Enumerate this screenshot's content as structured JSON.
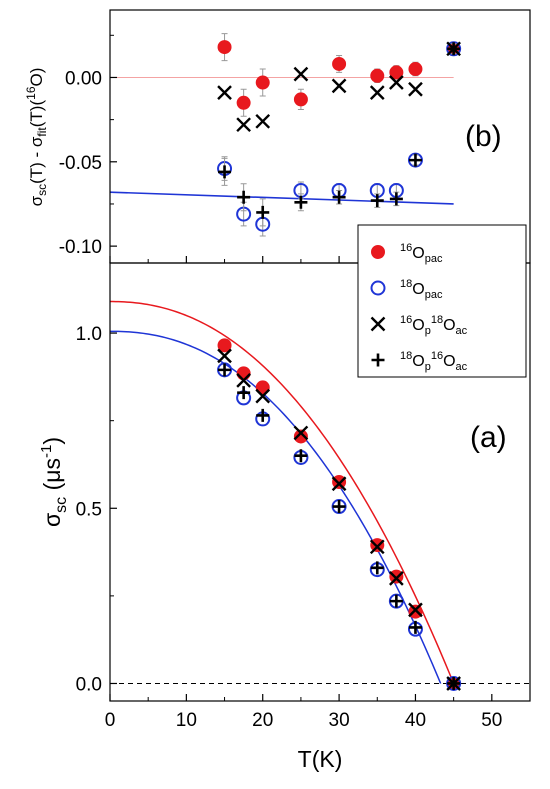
{
  "colors": {
    "red": "#e8191e",
    "blue": "#1f35d6",
    "black": "#000000",
    "errorbar": "#999999",
    "zero_line_b": "#f4a3a3"
  },
  "chart_data": [
    {
      "panel_label": "(b)",
      "type": "scatter",
      "ylabel": {
        "main": "σ",
        "sub1": "sc",
        "mid1": "(T) - σ",
        "sub2": "fit",
        "mid2": "(T)(",
        "sup": "16",
        "end": "O)"
      },
      "ylim": [
        -0.11,
        0.04
      ],
      "yticks": [
        0.0,
        -0.05,
        -0.1
      ],
      "ytick_labels": [
        "0.00",
        "-0.05",
        "-0.10"
      ],
      "grid": false,
      "series": [
        {
          "name": "16O_pac",
          "marker": "filled-circle",
          "color": "#e8191e",
          "x": [
            15,
            17.5,
            20,
            25,
            30,
            35,
            37.5,
            40,
            45
          ],
          "y": [
            0.018,
            -0.015,
            -0.003,
            -0.013,
            0.008,
            0.001,
            0.003,
            0.005,
            0.017
          ],
          "err": [
            0.008,
            0.008,
            0.008,
            0.006,
            0.005,
            0.004,
            0.004,
            0.004,
            0.004
          ]
        },
        {
          "name": "18O_pac",
          "marker": "open-circle",
          "color": "#1f35d6",
          "x": [
            15,
            17.5,
            20,
            25,
            30,
            35,
            37.5,
            40,
            45
          ],
          "y": [
            -0.054,
            -0.081,
            -0.087,
            -0.067,
            -0.067,
            -0.067,
            -0.067,
            -0.049,
            0.017
          ],
          "err": [
            0.007,
            0.007,
            0.007,
            0.005,
            0.004,
            0.004,
            0.004,
            0.003,
            0.003
          ]
        },
        {
          "name": "16Op18Oac",
          "marker": "x",
          "color": "#000000",
          "x": [
            15,
            17.5,
            20,
            25,
            30,
            35,
            37.5,
            40,
            45
          ],
          "y": [
            -0.009,
            -0.028,
            -0.026,
            0.002,
            -0.005,
            -0.009,
            -0.003,
            -0.007,
            0.017
          ],
          "err": [
            0,
            0,
            0,
            0,
            0,
            0,
            0,
            0,
            0
          ]
        },
        {
          "name": "18Op16Oac",
          "marker": "plus",
          "color": "#000000",
          "x": [
            15,
            17.5,
            20,
            25,
            30,
            35,
            37.5,
            40,
            45
          ],
          "y": [
            -0.056,
            -0.071,
            -0.08,
            -0.074,
            -0.071,
            -0.073,
            -0.072,
            -0.049,
            0.017
          ],
          "err": [
            0.008,
            0.008,
            0.008,
            0.005,
            0.004,
            0.004,
            0.004,
            0.003,
            0.003
          ]
        }
      ],
      "lines": [
        {
          "kind": "zero-line",
          "color": "#f4a3a3",
          "x": [
            0,
            45
          ],
          "y": [
            0,
            0
          ]
        },
        {
          "kind": "fit",
          "color": "#1f35d6",
          "x": [
            0,
            45
          ],
          "y": [
            -0.068,
            -0.075
          ]
        }
      ]
    },
    {
      "panel_label": "(a)",
      "type": "scatter",
      "xlabel": "T(K)",
      "ylabel": {
        "main": "σ",
        "sub": "sc",
        "mid": " (μs",
        "sup": "-1",
        "end": ")"
      },
      "xlim": [
        0,
        55
      ],
      "ylim": [
        -0.05,
        1.2
      ],
      "xticks": [
        0,
        10,
        20,
        30,
        40,
        50
      ],
      "yticks": [
        0.0,
        0.5,
        1.0
      ],
      "ytick_labels": [
        "0.0",
        "0.5",
        "1.0"
      ],
      "grid": false,
      "legend": {
        "placement": "top-right",
        "entries": [
          {
            "marker": "filled-circle",
            "color": "#e8191e",
            "parts": [
              {
                "t": "16",
                "s": "sup"
              },
              {
                "t": "O",
                "s": ""
              },
              {
                "t": "pac",
                "s": "sub"
              }
            ]
          },
          {
            "marker": "open-circle",
            "color": "#1f35d6",
            "parts": [
              {
                "t": "18",
                "s": "sup"
              },
              {
                "t": "O",
                "s": ""
              },
              {
                "t": "pac",
                "s": "sub"
              }
            ]
          },
          {
            "marker": "x",
            "color": "#000000",
            "parts": [
              {
                "t": "16",
                "s": "sup"
              },
              {
                "t": "O",
                "s": ""
              },
              {
                "t": "p",
                "s": "sub"
              },
              {
                "t": "18",
                "s": "sup"
              },
              {
                "t": "O",
                "s": ""
              },
              {
                "t": "ac",
                "s": "sub"
              }
            ]
          },
          {
            "marker": "plus",
            "color": "#000000",
            "parts": [
              {
                "t": "18",
                "s": "sup"
              },
              {
                "t": "O",
                "s": ""
              },
              {
                "t": "p",
                "s": "sub"
              },
              {
                "t": "16",
                "s": "sup"
              },
              {
                "t": "O",
                "s": ""
              },
              {
                "t": "ac",
                "s": "sub"
              }
            ]
          }
        ]
      },
      "series": [
        {
          "name": "16O_pac",
          "marker": "filled-circle",
          "color": "#e8191e",
          "x": [
            15,
            17.5,
            20,
            25,
            30,
            35,
            37.5,
            40,
            45
          ],
          "y": [
            0.965,
            0.885,
            0.845,
            0.705,
            0.575,
            0.395,
            0.305,
            0.205,
            0.0
          ]
        },
        {
          "name": "18O_pac",
          "marker": "open-circle",
          "color": "#1f35d6",
          "x": [
            15,
            17.5,
            20,
            25,
            30,
            35,
            37.5,
            40,
            45
          ],
          "y": [
            0.895,
            0.815,
            0.755,
            0.645,
            0.505,
            0.325,
            0.235,
            0.155,
            0.0
          ]
        },
        {
          "name": "16Op18Oac",
          "marker": "x",
          "color": "#000000",
          "x": [
            15,
            17.5,
            20,
            25,
            30,
            35,
            37.5,
            40,
            45
          ],
          "y": [
            0.935,
            0.865,
            0.82,
            0.715,
            0.57,
            0.39,
            0.3,
            0.21,
            0.0
          ]
        },
        {
          "name": "18Op16Oac",
          "marker": "plus",
          "color": "#000000",
          "x": [
            15,
            17.5,
            20,
            25,
            30,
            35,
            37.5,
            40,
            45
          ],
          "y": [
            0.895,
            0.83,
            0.765,
            0.65,
            0.505,
            0.33,
            0.235,
            0.16,
            0.0
          ]
        }
      ],
      "fits": [
        {
          "color": "#e8191e",
          "sigma0": 1.09,
          "Tc": 45.0,
          "power": 2.2
        },
        {
          "color": "#1f35d6",
          "sigma0": 1.005,
          "Tc": 43.3,
          "power": 2.25
        }
      ],
      "dashed_zero_line": true
    }
  ]
}
